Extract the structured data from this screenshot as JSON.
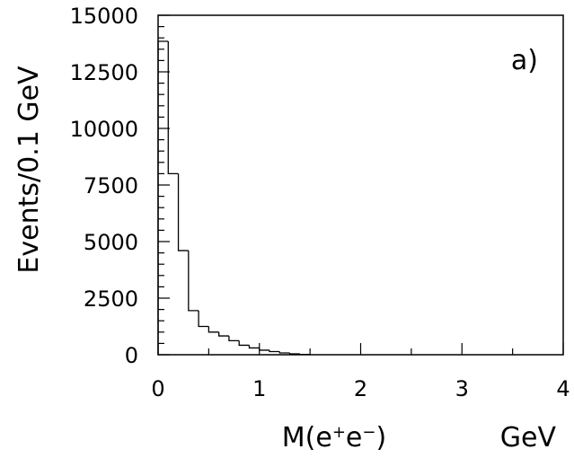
{
  "chart_data": {
    "type": "bar",
    "histogram": true,
    "title": "",
    "panel_label": "a)",
    "xlabel": "M(e⁺e⁻)",
    "xlabel_parts": {
      "base": "M(e",
      "sup1": "+",
      "mid": "e",
      "sup2": "−",
      "end": ")"
    },
    "xunit": "GeV",
    "ylabel": "Events/0.1 GeV",
    "xlim": [
      0,
      4
    ],
    "ylim": [
      0,
      15000
    ],
    "bin_width": 0.1,
    "xticks": [
      0,
      1,
      2,
      3,
      4
    ],
    "xtick_labels": [
      "0",
      "1",
      "2",
      "3",
      "4"
    ],
    "yticks": [
      0,
      2500,
      5000,
      7500,
      10000,
      12500,
      15000
    ],
    "ytick_labels": [
      "0",
      "2500",
      "5000",
      "7500",
      "10000",
      "12500",
      "15000"
    ],
    "bin_edges": [
      0.0,
      0.1,
      0.2,
      0.3,
      0.4,
      0.5,
      0.6,
      0.7,
      0.8,
      0.9,
      1.0,
      1.1,
      1.2,
      1.3,
      1.4,
      1.5
    ],
    "values": [
      13850,
      8000,
      4600,
      1950,
      1250,
      1000,
      830,
      620,
      420,
      300,
      200,
      140,
      80,
      40,
      15
    ],
    "grid": false,
    "legend": "none",
    "line_color": "#000000"
  }
}
